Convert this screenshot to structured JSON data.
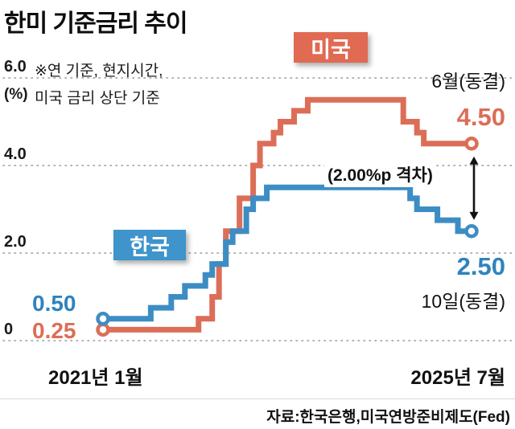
{
  "title": "한미 기준금리 추이",
  "notes": {
    "line1": "※연 기준, 현지시간,",
    "line2": "미국 금리 상단 기준"
  },
  "labels": {
    "us_badge": "미국",
    "kr_badge": "한국",
    "us_end_note": "6월(동결)",
    "us_end_value": "4.50",
    "gap": "(2.00%p 격차)",
    "kr_end_value": "2.50",
    "kr_end_note": "10일(동결)",
    "kr_start_value": "0.50",
    "us_start_value": "0.25",
    "source": "자료:한국은행,미국연방준비제도(Fed)"
  },
  "colors": {
    "us_line": "#dc6e57",
    "kr_line": "#3d8dc4",
    "us_badge_bg": "#e06a52",
    "kr_badge_bg": "#3e94cb",
    "grid": "#9a9a9a",
    "text": "#111111"
  },
  "chart_data": {
    "type": "line",
    "style": "step-after",
    "title": "한미 기준금리 추이 (기준금리, %)",
    "x_unit": "개월 (2021년 1월 = 0)",
    "x_range": [
      0,
      54
    ],
    "x_tick_labels": [
      "2021년 1월",
      "2025년 7월"
    ],
    "ylim": [
      0,
      6.0
    ],
    "ylabel": "(%)",
    "yticks": [
      6.0,
      4.0,
      2.0,
      0
    ],
    "ytick_labels": [
      "6.0",
      "4.0",
      "2.0",
      "0"
    ],
    "grid": "dotted",
    "series": [
      {
        "name": "미국",
        "color": "#dc6e57",
        "start_value": 0.25,
        "end_value": 4.5,
        "points": [
          [
            0,
            0.25
          ],
          [
            14,
            0.5
          ],
          [
            16,
            1.0
          ],
          [
            17,
            1.75
          ],
          [
            18,
            2.5
          ],
          [
            20,
            3.25
          ],
          [
            22,
            4.0
          ],
          [
            23,
            4.5
          ],
          [
            25,
            4.75
          ],
          [
            26,
            5.0
          ],
          [
            28,
            5.25
          ],
          [
            30,
            5.5
          ],
          [
            44,
            5.0
          ],
          [
            46,
            4.75
          ],
          [
            47,
            4.5
          ]
        ]
      },
      {
        "name": "한국",
        "color": "#3d8dc4",
        "start_value": 0.5,
        "end_value": 2.5,
        "points": [
          [
            0,
            0.5
          ],
          [
            7,
            0.75
          ],
          [
            10,
            1.0
          ],
          [
            12,
            1.25
          ],
          [
            15,
            1.5
          ],
          [
            16,
            1.75
          ],
          [
            18,
            2.25
          ],
          [
            19,
            2.5
          ],
          [
            21,
            3.0
          ],
          [
            22,
            3.25
          ],
          [
            24,
            3.5
          ],
          [
            45,
            3.25
          ],
          [
            46,
            3.0
          ],
          [
            49,
            2.75
          ],
          [
            52,
            2.5
          ]
        ]
      }
    ],
    "gap_annotation": {
      "label": "(2.00%p 격차)",
      "value_p": 2.0
    }
  }
}
